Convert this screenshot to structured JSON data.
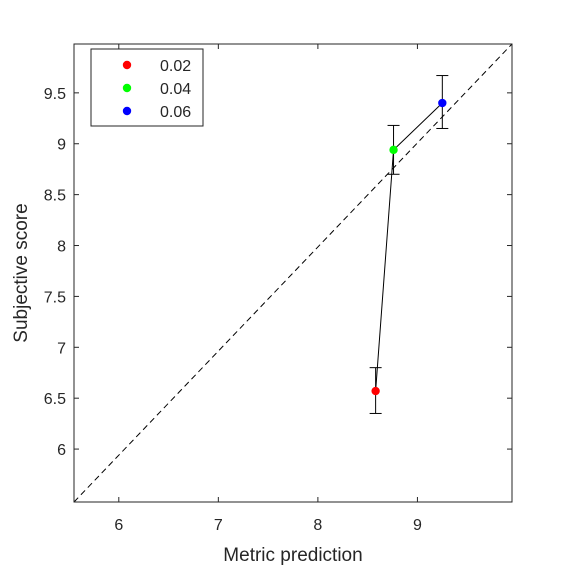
{
  "chart_data": {
    "type": "scatter",
    "xlabel": "Metric prediction",
    "ylabel": "Subjective score",
    "xlim": [
      5.55,
      9.95
    ],
    "ylim": [
      5.48,
      9.98
    ],
    "xticks": [
      6,
      7,
      8,
      9
    ],
    "yticks": [
      6,
      6.5,
      7,
      7.5,
      8,
      8.5,
      9,
      9.5
    ],
    "xtick_labels": [
      "6",
      "7",
      "8",
      "9"
    ],
    "ytick_labels": [
      "6",
      "6.5",
      "7",
      "7.5",
      "8",
      "8.5",
      "9",
      "9.5"
    ],
    "reference_line": {
      "style": "dashed",
      "color": "#000000",
      "from": [
        5.55,
        5.48
      ],
      "to": [
        9.95,
        9.98
      ]
    },
    "connecting_line": true,
    "grid": false,
    "legend_position": "top-left",
    "points": [
      {
        "label": "0.02",
        "x": 8.58,
        "y": 6.57,
        "err_low": 6.35,
        "err_high": 6.8,
        "color": "#ff0000"
      },
      {
        "label": "0.04",
        "x": 8.76,
        "y": 8.94,
        "err_low": 8.7,
        "err_high": 9.18,
        "color": "#00ff00"
      },
      {
        "label": "0.06",
        "x": 9.25,
        "y": 9.4,
        "err_low": 9.15,
        "err_high": 9.67,
        "color": "#0000ff"
      }
    ]
  }
}
